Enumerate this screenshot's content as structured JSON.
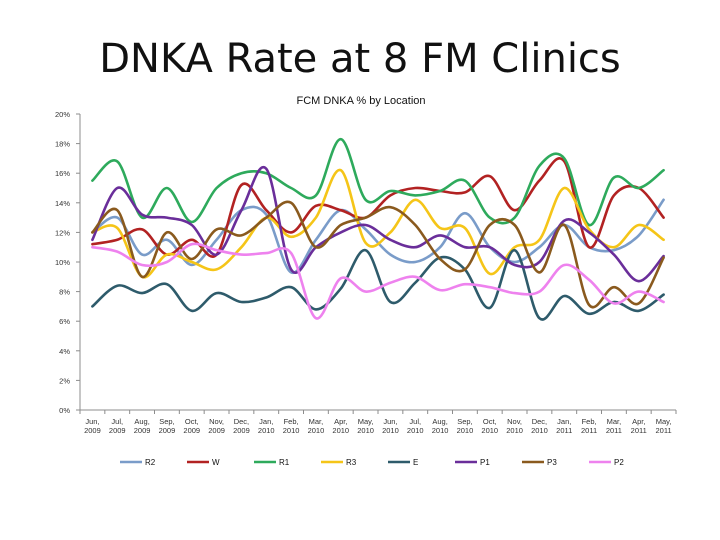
{
  "slide": {
    "title": "DNKA Rate at 8 FM Clinics"
  },
  "chart_data": {
    "type": "line",
    "title": "FCM DNKA % by Location",
    "xlabel": "",
    "ylabel": "",
    "ylim": [
      0,
      20
    ],
    "yticks": [
      0,
      2,
      4,
      6,
      8,
      10,
      12,
      14,
      16,
      18,
      20
    ],
    "ytick_labels": [
      "0%",
      "2%",
      "4%",
      "6%",
      "8%",
      "10%",
      "12%",
      "14%",
      "16%",
      "18%",
      "20%"
    ],
    "grid": false,
    "legend_position": "bottom",
    "categories": [
      [
        "Jun,",
        "2009"
      ],
      [
        "Jul,",
        "2009"
      ],
      [
        "Aug,",
        "2009"
      ],
      [
        "Sep,",
        "2009"
      ],
      [
        "Oct,",
        "2009"
      ],
      [
        "Nov,",
        "2009"
      ],
      [
        "Dec,",
        "2009"
      ],
      [
        "Jan,",
        "2010"
      ],
      [
        "Feb,",
        "2010"
      ],
      [
        "Mar,",
        "2010"
      ],
      [
        "Apr,",
        "2010"
      ],
      [
        "May,",
        "2010"
      ],
      [
        "Jun,",
        "2010"
      ],
      [
        "Jul,",
        "2010"
      ],
      [
        "Aug,",
        "2010"
      ],
      [
        "Sep,",
        "2010"
      ],
      [
        "Oct,",
        "2010"
      ],
      [
        "Nov,",
        "2010"
      ],
      [
        "Dec,",
        "2010"
      ],
      [
        "Jan,",
        "2011"
      ],
      [
        "Feb,",
        "2011"
      ],
      [
        "Mar,",
        "2011"
      ],
      [
        "Apr,",
        "2011"
      ],
      [
        "May,",
        "2011"
      ]
    ],
    "series": [
      {
        "name": "R2",
        "color": "#7a9cc9",
        "values": [
          12.0,
          13.0,
          10.5,
          11.5,
          9.8,
          11.5,
          13.5,
          13.2,
          9.3,
          11.5,
          13.5,
          12.2,
          10.5,
          10.0,
          11.0,
          13.3,
          11.0,
          10.0,
          11.0,
          12.5,
          11.0,
          10.8,
          11.8,
          14.2
        ]
      },
      {
        "name": "W",
        "color": "#b22222",
        "values": [
          11.2,
          11.5,
          12.2,
          10.5,
          11.5,
          10.5,
          15.2,
          13.5,
          12.0,
          13.8,
          13.5,
          13.0,
          14.5,
          15.0,
          14.8,
          14.7,
          15.8,
          13.5,
          15.5,
          16.8,
          11.0,
          14.5,
          15.0,
          13.0
        ]
      },
      {
        "name": "R1",
        "color": "#2eaa5c",
        "values": [
          15.5,
          16.8,
          13.0,
          15.0,
          12.7,
          15.0,
          16.0,
          16.0,
          15.0,
          14.5,
          18.3,
          14.2,
          14.8,
          14.5,
          14.8,
          15.5,
          13.0,
          13.0,
          16.5,
          17.0,
          12.5,
          15.7,
          15.0,
          16.2
        ]
      },
      {
        "name": "R3",
        "color": "#f5c518",
        "values": [
          12.0,
          12.3,
          9.0,
          10.5,
          10.0,
          9.5,
          11.0,
          13.0,
          11.7,
          13.0,
          16.2,
          11.3,
          12.0,
          14.2,
          12.3,
          12.3,
          9.2,
          11.0,
          11.5,
          15.0,
          12.2,
          11.0,
          12.5,
          11.5
        ]
      },
      {
        "name": "E",
        "color": "#2e5b6b",
        "values": [
          7.0,
          8.4,
          7.9,
          8.5,
          6.7,
          7.9,
          7.3,
          7.6,
          8.3,
          6.8,
          8.2,
          10.8,
          7.3,
          8.6,
          10.3,
          9.5,
          6.9,
          10.8,
          6.2,
          7.7,
          6.5,
          7.3,
          6.7,
          7.8
        ]
      },
      {
        "name": "P1",
        "color": "#6a2e9a",
        "values": [
          11.5,
          15.0,
          13.2,
          13.0,
          12.5,
          10.5,
          13.5,
          16.3,
          9.5,
          11.0,
          12.0,
          12.5,
          11.5,
          11.0,
          11.8,
          11.0,
          11.0,
          9.8,
          10.0,
          12.8,
          12.0,
          10.5,
          8.7,
          10.4
        ]
      },
      {
        "name": "P3",
        "color": "#8a5a1e",
        "values": [
          12.0,
          13.5,
          9.0,
          12.0,
          10.2,
          12.2,
          11.8,
          13.0,
          14.0,
          11.0,
          12.5,
          13.0,
          13.7,
          12.5,
          10.2,
          9.5,
          12.5,
          12.5,
          9.3,
          12.5,
          7.1,
          8.3,
          7.2,
          10.3
        ]
      },
      {
        "name": "P2",
        "color": "#ee82ee",
        "values": [
          11.0,
          10.7,
          9.8,
          10.0,
          11.2,
          10.8,
          10.5,
          10.6,
          10.6,
          6.2,
          8.9,
          8.0,
          8.6,
          9.0,
          8.1,
          8.5,
          8.3,
          7.9,
          8.0,
          9.8,
          8.8,
          7.2,
          8.0,
          7.3
        ]
      }
    ]
  }
}
